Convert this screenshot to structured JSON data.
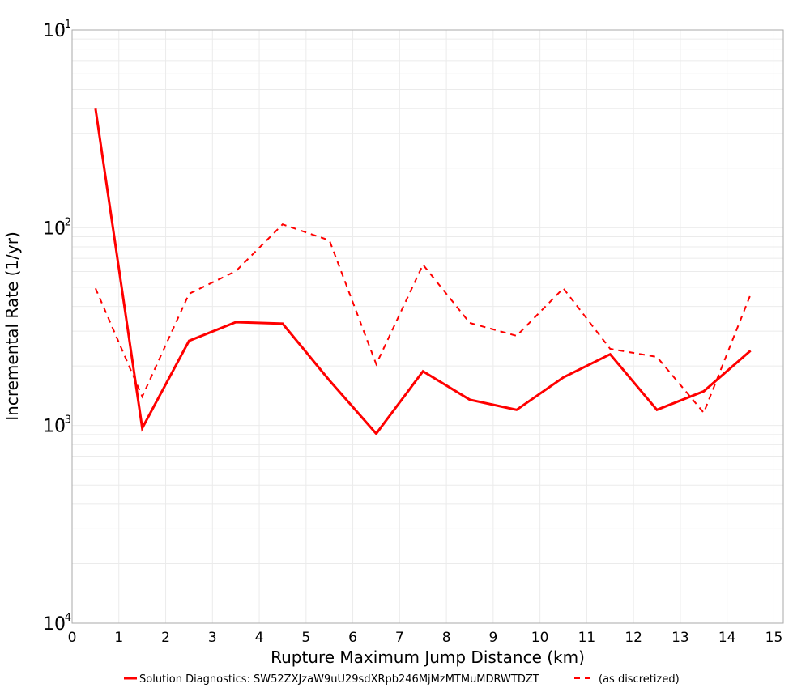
{
  "chart_data": {
    "type": "line",
    "title": "",
    "xlabel": "Rupture Maximum Jump Distance (km)",
    "ylabel": "Incremental Rate (1/yr)",
    "xlim": [
      0,
      15.2
    ],
    "ylim": [
      0.0001,
      0.1
    ],
    "yscale": "log",
    "grid": true,
    "legend_position": "bottom",
    "x_ticks": [
      "0",
      "1",
      "2",
      "3",
      "4",
      "5",
      "6",
      "7",
      "8",
      "9",
      "10",
      "11",
      "12",
      "13",
      "14",
      "15"
    ],
    "y_ticks": [
      {
        "base": "10",
        "exp": "-1",
        "value": 0.1
      },
      {
        "base": "10",
        "exp": "-2",
        "value": 0.01
      },
      {
        "base": "10",
        "exp": "-3",
        "value": 0.001
      },
      {
        "base": "10",
        "exp": "-4",
        "value": 0.0001
      }
    ],
    "x": [
      0.5,
      1.5,
      2.5,
      3.5,
      4.5,
      5.5,
      6.5,
      7.5,
      8.5,
      9.5,
      10.5,
      11.5,
      12.5,
      13.5,
      14.5
    ],
    "series": [
      {
        "name": "Solution Diagnostics: SW52ZXJzaW9uU29sdXRpb246MjMzMTMuMDRWTDZT",
        "style": "solid",
        "color": "#ff0000",
        "values": [
          0.04,
          0.00097,
          0.00268,
          0.00333,
          0.00327,
          0.00169,
          0.00091,
          0.00188,
          0.00135,
          0.0012,
          0.00175,
          0.00229,
          0.0012,
          0.00149,
          0.00239
        ]
      },
      {
        "name": "(as discretized)",
        "style": "dashed",
        "color": "#ff0000",
        "values": [
          0.00494,
          0.0014,
          0.00463,
          0.00603,
          0.0104,
          0.00863,
          0.00204,
          0.0065,
          0.0033,
          0.00284,
          0.00494,
          0.00244,
          0.00222,
          0.00116,
          0.00459
        ]
      }
    ]
  },
  "colors": {
    "series": "#ff0000",
    "grid": "#ebebeb",
    "axis": "#aaaaaa",
    "background": "#ffffff"
  }
}
